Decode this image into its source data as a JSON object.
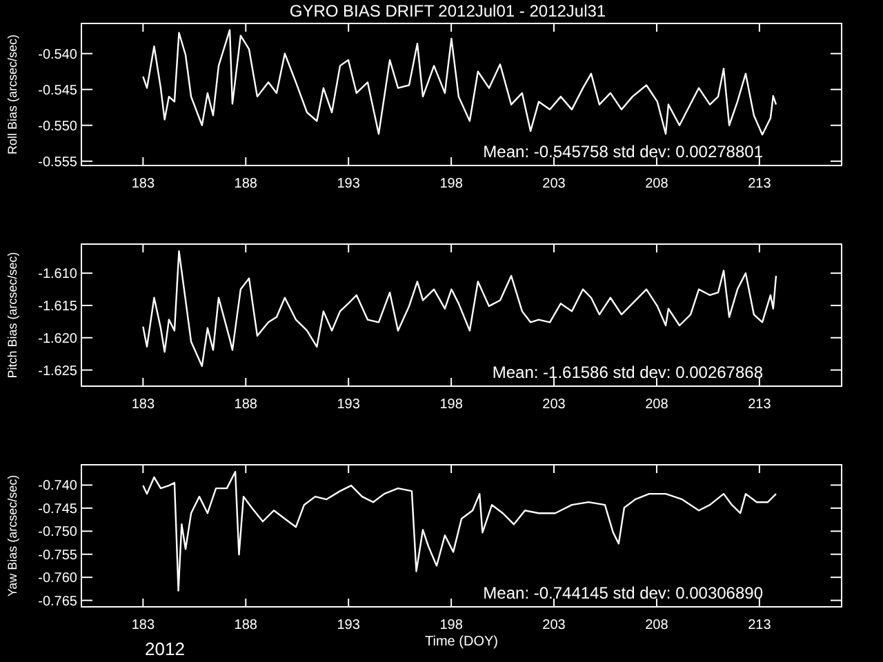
{
  "chart_data": [
    {
      "type": "line",
      "title": "GYRO BIAS DRIFT 2012Jul01 - 2012Jul31",
      "ylabel": "Roll Bias (arcsec/sec)",
      "xlim": [
        180,
        217
      ],
      "xticks": [
        183,
        188,
        193,
        198,
        203,
        208,
        213
      ],
      "ylim": [
        -0.5556,
        -0.5358
      ],
      "yticks": [
        {
          "value": -0.54,
          "label": "-0.540"
        },
        {
          "value": -0.545,
          "label": "-0.545"
        },
        {
          "value": -0.55,
          "label": "-0.550"
        },
        {
          "value": -0.555,
          "label": "-0.555"
        }
      ],
      "grid": false,
      "marker": "none",
      "line_style": "solid",
      "annotations": [
        "Mean: -0.545758 std dev: 0.00278801"
      ],
      "series": [
        {
          "color": "#ffffff",
          "x": [
            183.0,
            183.19,
            183.54,
            183.86,
            184.05,
            184.26,
            184.53,
            184.75,
            185.07,
            185.34,
            185.87,
            186.14,
            186.41,
            186.68,
            187.22,
            187.35,
            187.75,
            188.16,
            188.56,
            189.1,
            189.5,
            189.9,
            190.44,
            190.98,
            191.46,
            191.78,
            192.19,
            192.59,
            192.99,
            193.39,
            193.93,
            194.47,
            195.01,
            195.41,
            195.95,
            196.35,
            196.62,
            197.16,
            197.69,
            198.01,
            198.36,
            198.9,
            199.3,
            199.84,
            200.38,
            200.92,
            201.45,
            201.86,
            202.26,
            202.8,
            203.33,
            203.87,
            204.41,
            204.81,
            205.21,
            205.75,
            206.29,
            206.82,
            207.5,
            208.03,
            208.44,
            208.57,
            209.11,
            209.65,
            210.05,
            210.59,
            210.99,
            211.26,
            211.53,
            211.93,
            212.33,
            212.73,
            213.14,
            213.54,
            213.67,
            213.81
          ],
          "values": [
            -0.5432,
            -0.5448,
            -0.539,
            -0.5448,
            -0.5492,
            -0.546,
            -0.5467,
            -0.5371,
            -0.5402,
            -0.546,
            -0.55,
            -0.5455,
            -0.5486,
            -0.5417,
            -0.5367,
            -0.547,
            -0.5375,
            -0.5394,
            -0.546,
            -0.544,
            -0.5455,
            -0.54,
            -0.544,
            -0.5482,
            -0.5494,
            -0.5448,
            -0.5482,
            -0.5417,
            -0.5409,
            -0.5455,
            -0.544,
            -0.5512,
            -0.5409,
            -0.5448,
            -0.5444,
            -0.5386,
            -0.546,
            -0.5417,
            -0.5455,
            -0.5379,
            -0.546,
            -0.5494,
            -0.5425,
            -0.5448,
            -0.5415,
            -0.5471,
            -0.5455,
            -0.5508,
            -0.5467,
            -0.5478,
            -0.546,
            -0.5478,
            -0.5448,
            -0.5428,
            -0.5471,
            -0.5455,
            -0.5478,
            -0.546,
            -0.5444,
            -0.5467,
            -0.5512,
            -0.5471,
            -0.55,
            -0.547,
            -0.5448,
            -0.5471,
            -0.546,
            -0.5421,
            -0.55,
            -0.5467,
            -0.5428,
            -0.5486,
            -0.5513,
            -0.549,
            -0.5459,
            -0.5471
          ]
        }
      ]
    },
    {
      "type": "line",
      "ylabel": "Pitch Bias (arcsec/sec)",
      "xlim": [
        180,
        217
      ],
      "xticks": [
        183,
        188,
        193,
        198,
        203,
        208,
        213
      ],
      "ylim": [
        -1.6275,
        -1.6055
      ],
      "yticks": [
        {
          "value": -1.61,
          "label": "-1.610"
        },
        {
          "value": -1.615,
          "label": "-1.615"
        },
        {
          "value": -1.62,
          "label": "-1.620"
        },
        {
          "value": -1.625,
          "label": "-1.625"
        }
      ],
      "grid": false,
      "marker": "none",
      "line_style": "solid",
      "annotations": [
        "Mean: -1.61586 std dev: 0.00267868"
      ],
      "series": [
        {
          "color": "#ffffff",
          "x": [
            183.0,
            183.19,
            183.54,
            183.86,
            184.05,
            184.26,
            184.53,
            184.75,
            185.07,
            185.34,
            185.87,
            186.14,
            186.41,
            186.68,
            187.22,
            187.35,
            187.75,
            188.16,
            188.56,
            189.1,
            189.5,
            189.9,
            190.44,
            190.98,
            191.46,
            191.78,
            192.19,
            192.59,
            192.99,
            193.39,
            193.93,
            194.47,
            195.01,
            195.41,
            195.95,
            196.35,
            196.62,
            197.16,
            197.69,
            198.01,
            198.36,
            198.9,
            199.3,
            199.84,
            200.38,
            200.92,
            201.45,
            201.86,
            202.26,
            202.8,
            203.33,
            203.87,
            204.41,
            204.81,
            205.21,
            205.75,
            206.29,
            206.82,
            207.5,
            208.03,
            208.44,
            208.57,
            209.11,
            209.65,
            210.05,
            210.59,
            210.99,
            211.26,
            211.53,
            211.93,
            212.33,
            212.73,
            213.14,
            213.54,
            213.67,
            213.81
          ],
          "values": [
            -1.6183,
            -1.6214,
            -1.6138,
            -1.6185,
            -1.6222,
            -1.6172,
            -1.6189,
            -1.6066,
            -1.6142,
            -1.6206,
            -1.6244,
            -1.6185,
            -1.6219,
            -1.6138,
            -1.6202,
            -1.6219,
            -1.6125,
            -1.6108,
            -1.6197,
            -1.6176,
            -1.6168,
            -1.6138,
            -1.6172,
            -1.6189,
            -1.6214,
            -1.6159,
            -1.6189,
            -1.6159,
            -1.6147,
            -1.6134,
            -1.6172,
            -1.6176,
            -1.613,
            -1.6189,
            -1.6151,
            -1.6113,
            -1.6142,
            -1.6125,
            -1.6155,
            -1.6125,
            -1.6147,
            -1.6189,
            -1.6113,
            -1.6151,
            -1.6142,
            -1.6104,
            -1.6159,
            -1.6176,
            -1.6172,
            -1.6176,
            -1.6147,
            -1.6159,
            -1.6125,
            -1.6138,
            -1.6164,
            -1.6138,
            -1.6164,
            -1.6147,
            -1.6125,
            -1.6151,
            -1.6181,
            -1.6155,
            -1.6181,
            -1.6164,
            -1.6125,
            -1.6134,
            -1.613,
            -1.6096,
            -1.6168,
            -1.6125,
            -1.61,
            -1.6164,
            -1.6176,
            -1.6134,
            -1.6155,
            -1.6104
          ]
        }
      ]
    },
    {
      "type": "line",
      "ylabel": "Yaw Bias (arcsec/sec)",
      "xlabel": "Time (DOY)",
      "xlim": [
        180,
        217
      ],
      "xticks": [
        183,
        188,
        193,
        198,
        203,
        208,
        213
      ],
      "ylim": [
        -0.7664,
        -0.7356
      ],
      "yticks": [
        {
          "value": -0.74,
          "label": "-0.740"
        },
        {
          "value": -0.745,
          "label": "-0.745"
        },
        {
          "value": -0.75,
          "label": "-0.750"
        },
        {
          "value": -0.755,
          "label": "-0.755"
        },
        {
          "value": -0.76,
          "label": "-0.760"
        },
        {
          "value": -0.765,
          "label": "-0.765"
        }
      ],
      "grid": false,
      "marker": "none",
      "line_style": "solid",
      "annotations": [
        "Mean: -0.744145 std dev: 0.00306890",
        "2012"
      ],
      "series": [
        {
          "color": "#ffffff",
          "x": [
            183.0,
            183.19,
            183.54,
            183.86,
            184.26,
            184.53,
            184.61,
            184.72,
            184.88,
            185.07,
            185.34,
            185.74,
            186.14,
            186.55,
            187.08,
            187.49,
            187.67,
            187.89,
            188.29,
            188.83,
            189.37,
            189.9,
            190.44,
            190.84,
            191.38,
            191.92,
            192.59,
            193.13,
            193.66,
            194.2,
            194.74,
            195.41,
            196.08,
            196.3,
            196.62,
            196.89,
            197.29,
            197.69,
            198.1,
            198.5,
            199.04,
            199.38,
            199.52,
            199.98,
            200.51,
            201.05,
            201.59,
            202.26,
            203.06,
            203.87,
            204.68,
            205.48,
            205.88,
            206.15,
            206.42,
            206.96,
            207.63,
            208.44,
            209.24,
            210.05,
            210.59,
            211.26,
            211.66,
            212.07,
            212.33,
            212.87,
            213.41,
            213.81
          ],
          "values": [
            -0.7401,
            -0.7419,
            -0.7383,
            -0.7407,
            -0.7401,
            -0.7395,
            -0.7491,
            -0.7629,
            -0.7485,
            -0.7539,
            -0.7461,
            -0.7425,
            -0.7461,
            -0.7407,
            -0.7407,
            -0.7371,
            -0.7551,
            -0.7425,
            -0.7449,
            -0.7479,
            -0.7455,
            -0.7473,
            -0.7491,
            -0.7443,
            -0.7425,
            -0.7431,
            -0.7413,
            -0.7401,
            -0.7425,
            -0.7437,
            -0.7419,
            -0.7407,
            -0.7413,
            -0.7587,
            -0.7497,
            -0.7533,
            -0.7575,
            -0.7509,
            -0.7545,
            -0.7473,
            -0.7455,
            -0.7419,
            -0.7503,
            -0.7443,
            -0.7461,
            -0.7485,
            -0.7455,
            -0.7461,
            -0.7461,
            -0.7443,
            -0.7437,
            -0.7443,
            -0.7503,
            -0.7527,
            -0.7449,
            -0.7431,
            -0.7419,
            -0.7419,
            -0.7431,
            -0.7455,
            -0.7443,
            -0.7419,
            -0.7443,
            -0.7461,
            -0.7419,
            -0.7437,
            -0.7437,
            -0.7419
          ]
        }
      ]
    }
  ]
}
